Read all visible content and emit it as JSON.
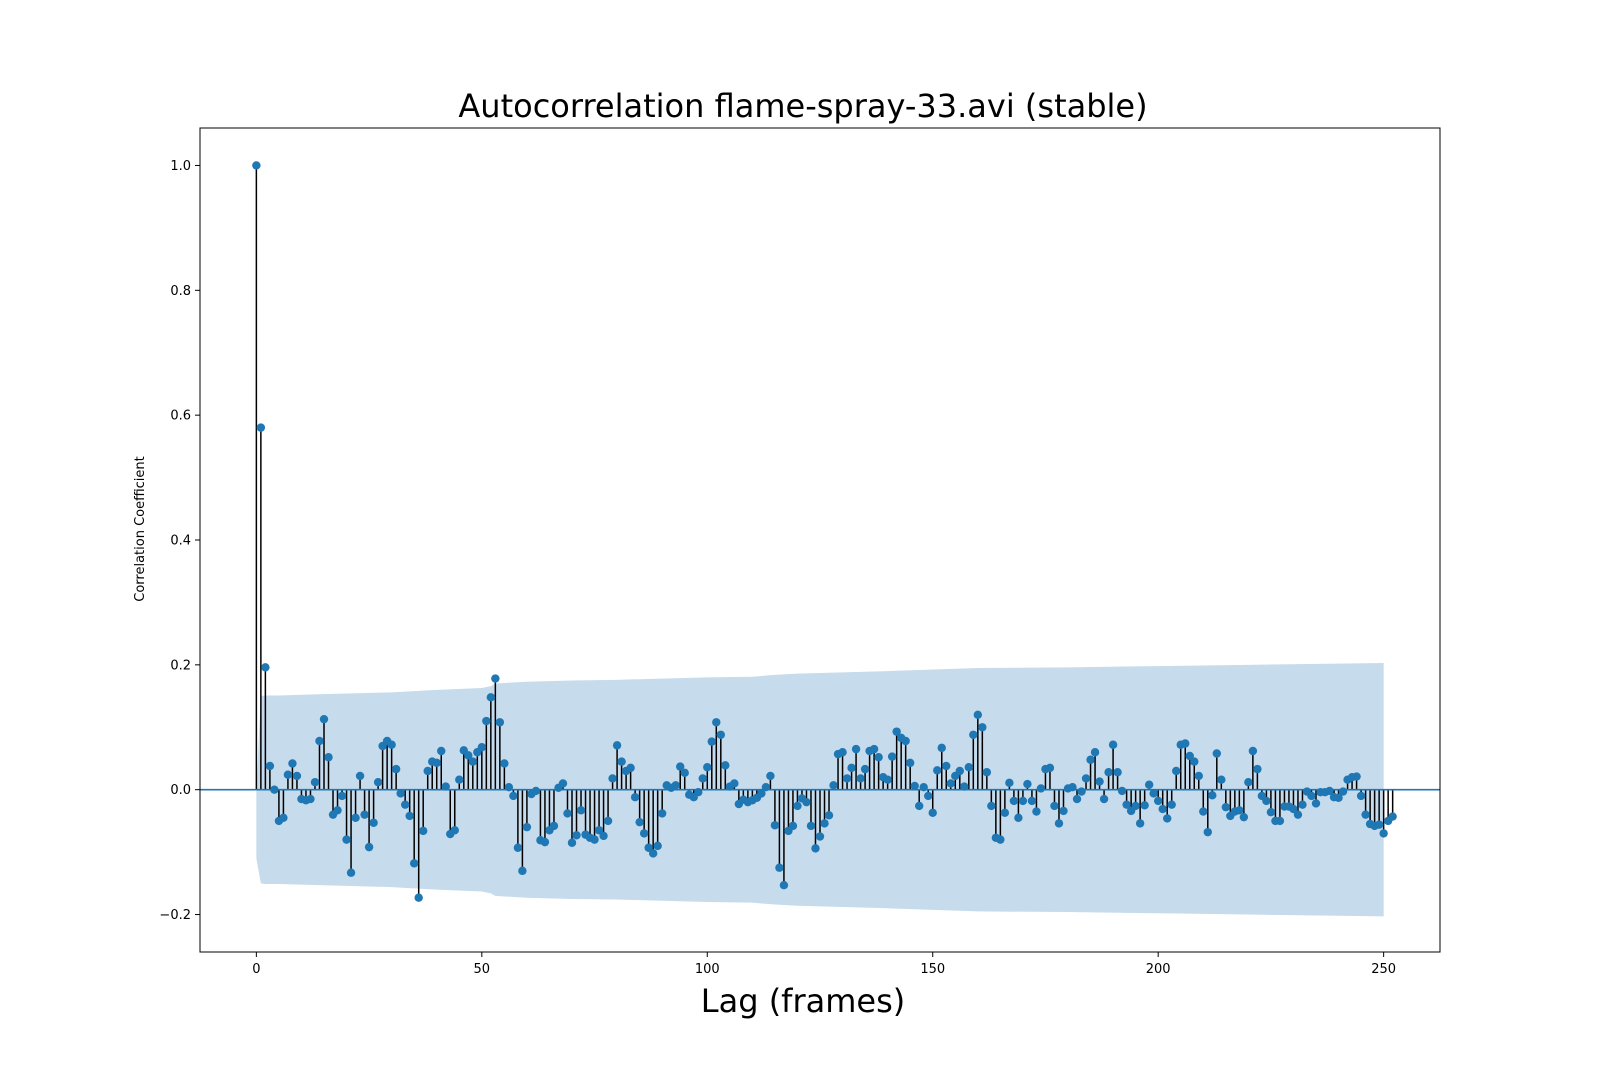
{
  "chart_data": {
    "type": "scatter",
    "subtype": "stem-autocorrelation",
    "title": "Autocorrelation flame-spray-33.avi (stable)",
    "xlabel": "Lag (frames)",
    "ylabel": "Correlation Coefficient",
    "xlim": [
      -12.5,
      262.5
    ],
    "ylim": [
      -0.26,
      1.06
    ],
    "xticks": [
      0,
      50,
      100,
      150,
      200,
      250
    ],
    "xtick_labels": [
      "0",
      "50",
      "100",
      "150",
      "200",
      "250"
    ],
    "yticks": [
      -0.2,
      0.0,
      0.2,
      0.4,
      0.6,
      0.8,
      1.0
    ],
    "ytick_labels": [
      "−0.2",
      "0.0",
      "0.2",
      "0.4",
      "0.6",
      "0.8",
      "1.0"
    ],
    "grid": false,
    "colors": {
      "marker": "#1f77b4",
      "stem": "#000000",
      "baseline": "#1f77b4",
      "band": "#c6dbec"
    },
    "confidence_band": {
      "lags": [
        0,
        1,
        2,
        5,
        10,
        20,
        30,
        35,
        40,
        50,
        52,
        53,
        55,
        60,
        70,
        80,
        90,
        100,
        110,
        115,
        120,
        140,
        160,
        180,
        200,
        220,
        240,
        250
      ],
      "upper": [
        0.0,
        0.15,
        0.151,
        0.151,
        0.152,
        0.154,
        0.156,
        0.158,
        0.16,
        0.163,
        0.166,
        0.17,
        0.171,
        0.173,
        0.175,
        0.176,
        0.178,
        0.18,
        0.181,
        0.184,
        0.186,
        0.19,
        0.195,
        0.196,
        0.198,
        0.2,
        0.202,
        0.203
      ],
      "lower": [
        -0.11,
        -0.15,
        -0.151,
        -0.151,
        -0.152,
        -0.154,
        -0.156,
        -0.158,
        -0.16,
        -0.163,
        -0.166,
        -0.17,
        -0.171,
        -0.173,
        -0.175,
        -0.176,
        -0.178,
        -0.18,
        -0.181,
        -0.184,
        -0.186,
        -0.19,
        -0.195,
        -0.196,
        -0.198,
        -0.2,
        -0.202,
        -0.203
      ]
    },
    "values": [
      1.0,
      0.58,
      0.196,
      0.038,
      0.0,
      -0.05,
      -0.045,
      0.024,
      0.042,
      0.022,
      -0.015,
      -0.017,
      -0.015,
      0.012,
      0.078,
      0.113,
      0.052,
      -0.04,
      -0.033,
      -0.01,
      -0.08,
      -0.133,
      -0.045,
      0.022,
      -0.04,
      -0.092,
      -0.053,
      0.012,
      0.07,
      0.078,
      0.072,
      0.033,
      -0.006,
      -0.024,
      -0.042,
      -0.118,
      -0.173,
      -0.066,
      0.03,
      0.045,
      0.043,
      0.062,
      0.005,
      -0.071,
      -0.065,
      0.016,
      0.063,
      0.055,
      0.045,
      0.06,
      0.068,
      0.11,
      0.148,
      0.178,
      0.108,
      0.042,
      0.004,
      -0.01,
      -0.093,
      -0.13,
      -0.06,
      -0.007,
      -0.002,
      -0.081,
      -0.084,
      -0.065,
      -0.058,
      0.003,
      0.01,
      -0.038,
      -0.085,
      -0.073,
      -0.033,
      -0.072,
      -0.077,
      -0.08,
      -0.065,
      -0.074,
      -0.05,
      0.018,
      0.071,
      0.045,
      0.03,
      0.035,
      -0.012,
      -0.052,
      -0.07,
      -0.093,
      -0.102,
      -0.09,
      -0.038,
      0.007,
      0.003,
      0.007,
      0.037,
      0.027,
      -0.008,
      -0.012,
      -0.004,
      0.018,
      0.036,
      0.077,
      0.108,
      0.088,
      0.039,
      0.005,
      0.01,
      -0.023,
      -0.016,
      -0.02,
      -0.017,
      -0.013,
      -0.006,
      0.004,
      0.022,
      -0.057,
      -0.125,
      -0.153,
      -0.066,
      -0.058,
      -0.026,
      -0.014,
      -0.02,
      -0.058,
      -0.094,
      -0.075,
      -0.054,
      -0.041,
      0.007,
      0.057,
      0.06,
      0.018,
      0.035,
      0.065,
      0.018,
      0.033,
      0.062,
      0.065,
      0.052,
      0.02,
      0.016,
      0.053,
      0.093,
      0.083,
      0.078,
      0.043,
      0.006,
      -0.026,
      0.004,
      -0.01,
      -0.037,
      0.031,
      0.067,
      0.038,
      0.01,
      0.022,
      0.03,
      0.005,
      0.036,
      0.088,
      0.12,
      0.1,
      0.028,
      -0.026,
      -0.077,
      -0.08,
      -0.037,
      0.011,
      -0.018,
      -0.045,
      -0.018,
      0.009,
      -0.018,
      -0.035,
      0.002,
      0.033,
      0.035,
      -0.026,
      -0.054,
      -0.034,
      0.002,
      0.004,
      -0.015,
      -0.003,
      0.018,
      0.048,
      0.06,
      0.013,
      -0.015,
      0.028,
      0.072,
      0.028,
      -0.002,
      -0.024,
      -0.034,
      -0.026,
      -0.054,
      -0.025,
      0.008,
      -0.006,
      -0.018,
      -0.031,
      -0.046,
      -0.024,
      0.03,
      0.072,
      0.074,
      0.054,
      0.045,
      0.022,
      -0.035,
      -0.068,
      -0.009,
      0.058,
      0.016,
      -0.028,
      -0.042,
      -0.035,
      -0.033,
      -0.044,
      0.012,
      0.062,
      0.033,
      -0.01,
      -0.018,
      -0.036,
      -0.05,
      -0.05,
      -0.027,
      -0.027,
      -0.031,
      -0.04,
      -0.024,
      -0.003,
      -0.01,
      -0.022,
      -0.004,
      -0.004,
      -0.002,
      -0.012,
      -0.013,
      -0.003,
      0.016,
      0.02,
      0.021,
      -0.01,
      -0.04,
      -0.055,
      -0.058,
      -0.056,
      -0.07,
      -0.05,
      -0.043
    ]
  }
}
